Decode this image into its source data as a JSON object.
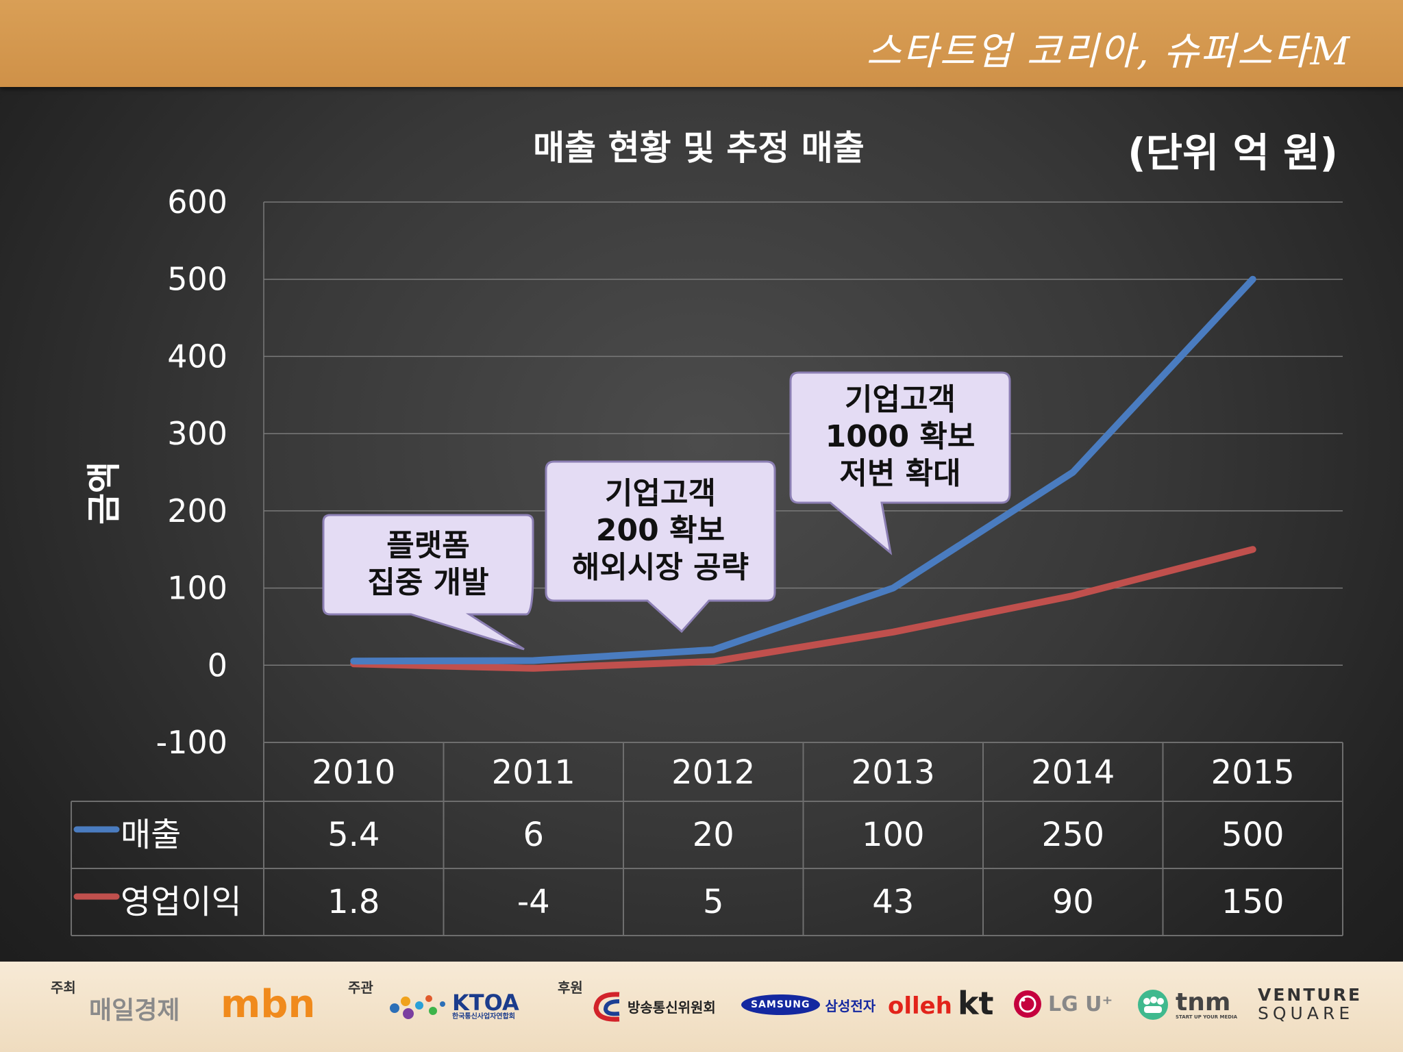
{
  "banner": {
    "brand": "스타트업 코리아, 슈퍼스타M",
    "color": "#d49850"
  },
  "chart_data": {
    "type": "line",
    "title": "매출 현황 및 추정 매출",
    "unit": "(단위 억 원)",
    "ylabel": "금액",
    "categories": [
      "2010",
      "2011",
      "2012",
      "2013",
      "2014",
      "2015"
    ],
    "ylim": [
      -100,
      600
    ],
    "yticks": [
      "600",
      "500",
      "400",
      "300",
      "200",
      "100",
      "0",
      "-100"
    ],
    "grid": true,
    "series": [
      {
        "name": "매출",
        "color": "#4a7cc0",
        "values": [
          5.4,
          6,
          20,
          100,
          250,
          500
        ],
        "labels": [
          "5.4",
          "6",
          "20",
          "100",
          "250",
          "500"
        ]
      },
      {
        "name": "영업이익",
        "color": "#c0504d",
        "values": [
          1.8,
          -4,
          5,
          43,
          90,
          150
        ],
        "labels": [
          "1.8",
          "-4",
          "5",
          "43",
          "90",
          "150"
        ]
      }
    ],
    "annotations": [
      {
        "text": "플랫폼\n집중 개발",
        "category": "2011"
      },
      {
        "text": "기업고객\n200 확보\n해외시장 공략",
        "category": "2012"
      },
      {
        "text": "기업고객\n1000 확보\n저변 확대",
        "category": "2013"
      }
    ]
  },
  "footer": {
    "host_label": "주최",
    "organizer_label": "주관",
    "sponsor_label": "후원",
    "logos": {
      "maeil": "매일경제",
      "mbn": "mbn",
      "ktoa": "KTOA",
      "ktoa_sub": "한국통신사업자연합회",
      "kcc": "방송통신위원회",
      "samsung": "SAMSUNG",
      "samsung_kr": "삼성전자",
      "olleh": "olleh",
      "kt": "kt",
      "lgu": "LG U⁺",
      "tnm": "tnm",
      "tnm_sub": "START UP YOUR MEDIA",
      "venture": "VENTURE",
      "square": "SQUARE"
    }
  }
}
